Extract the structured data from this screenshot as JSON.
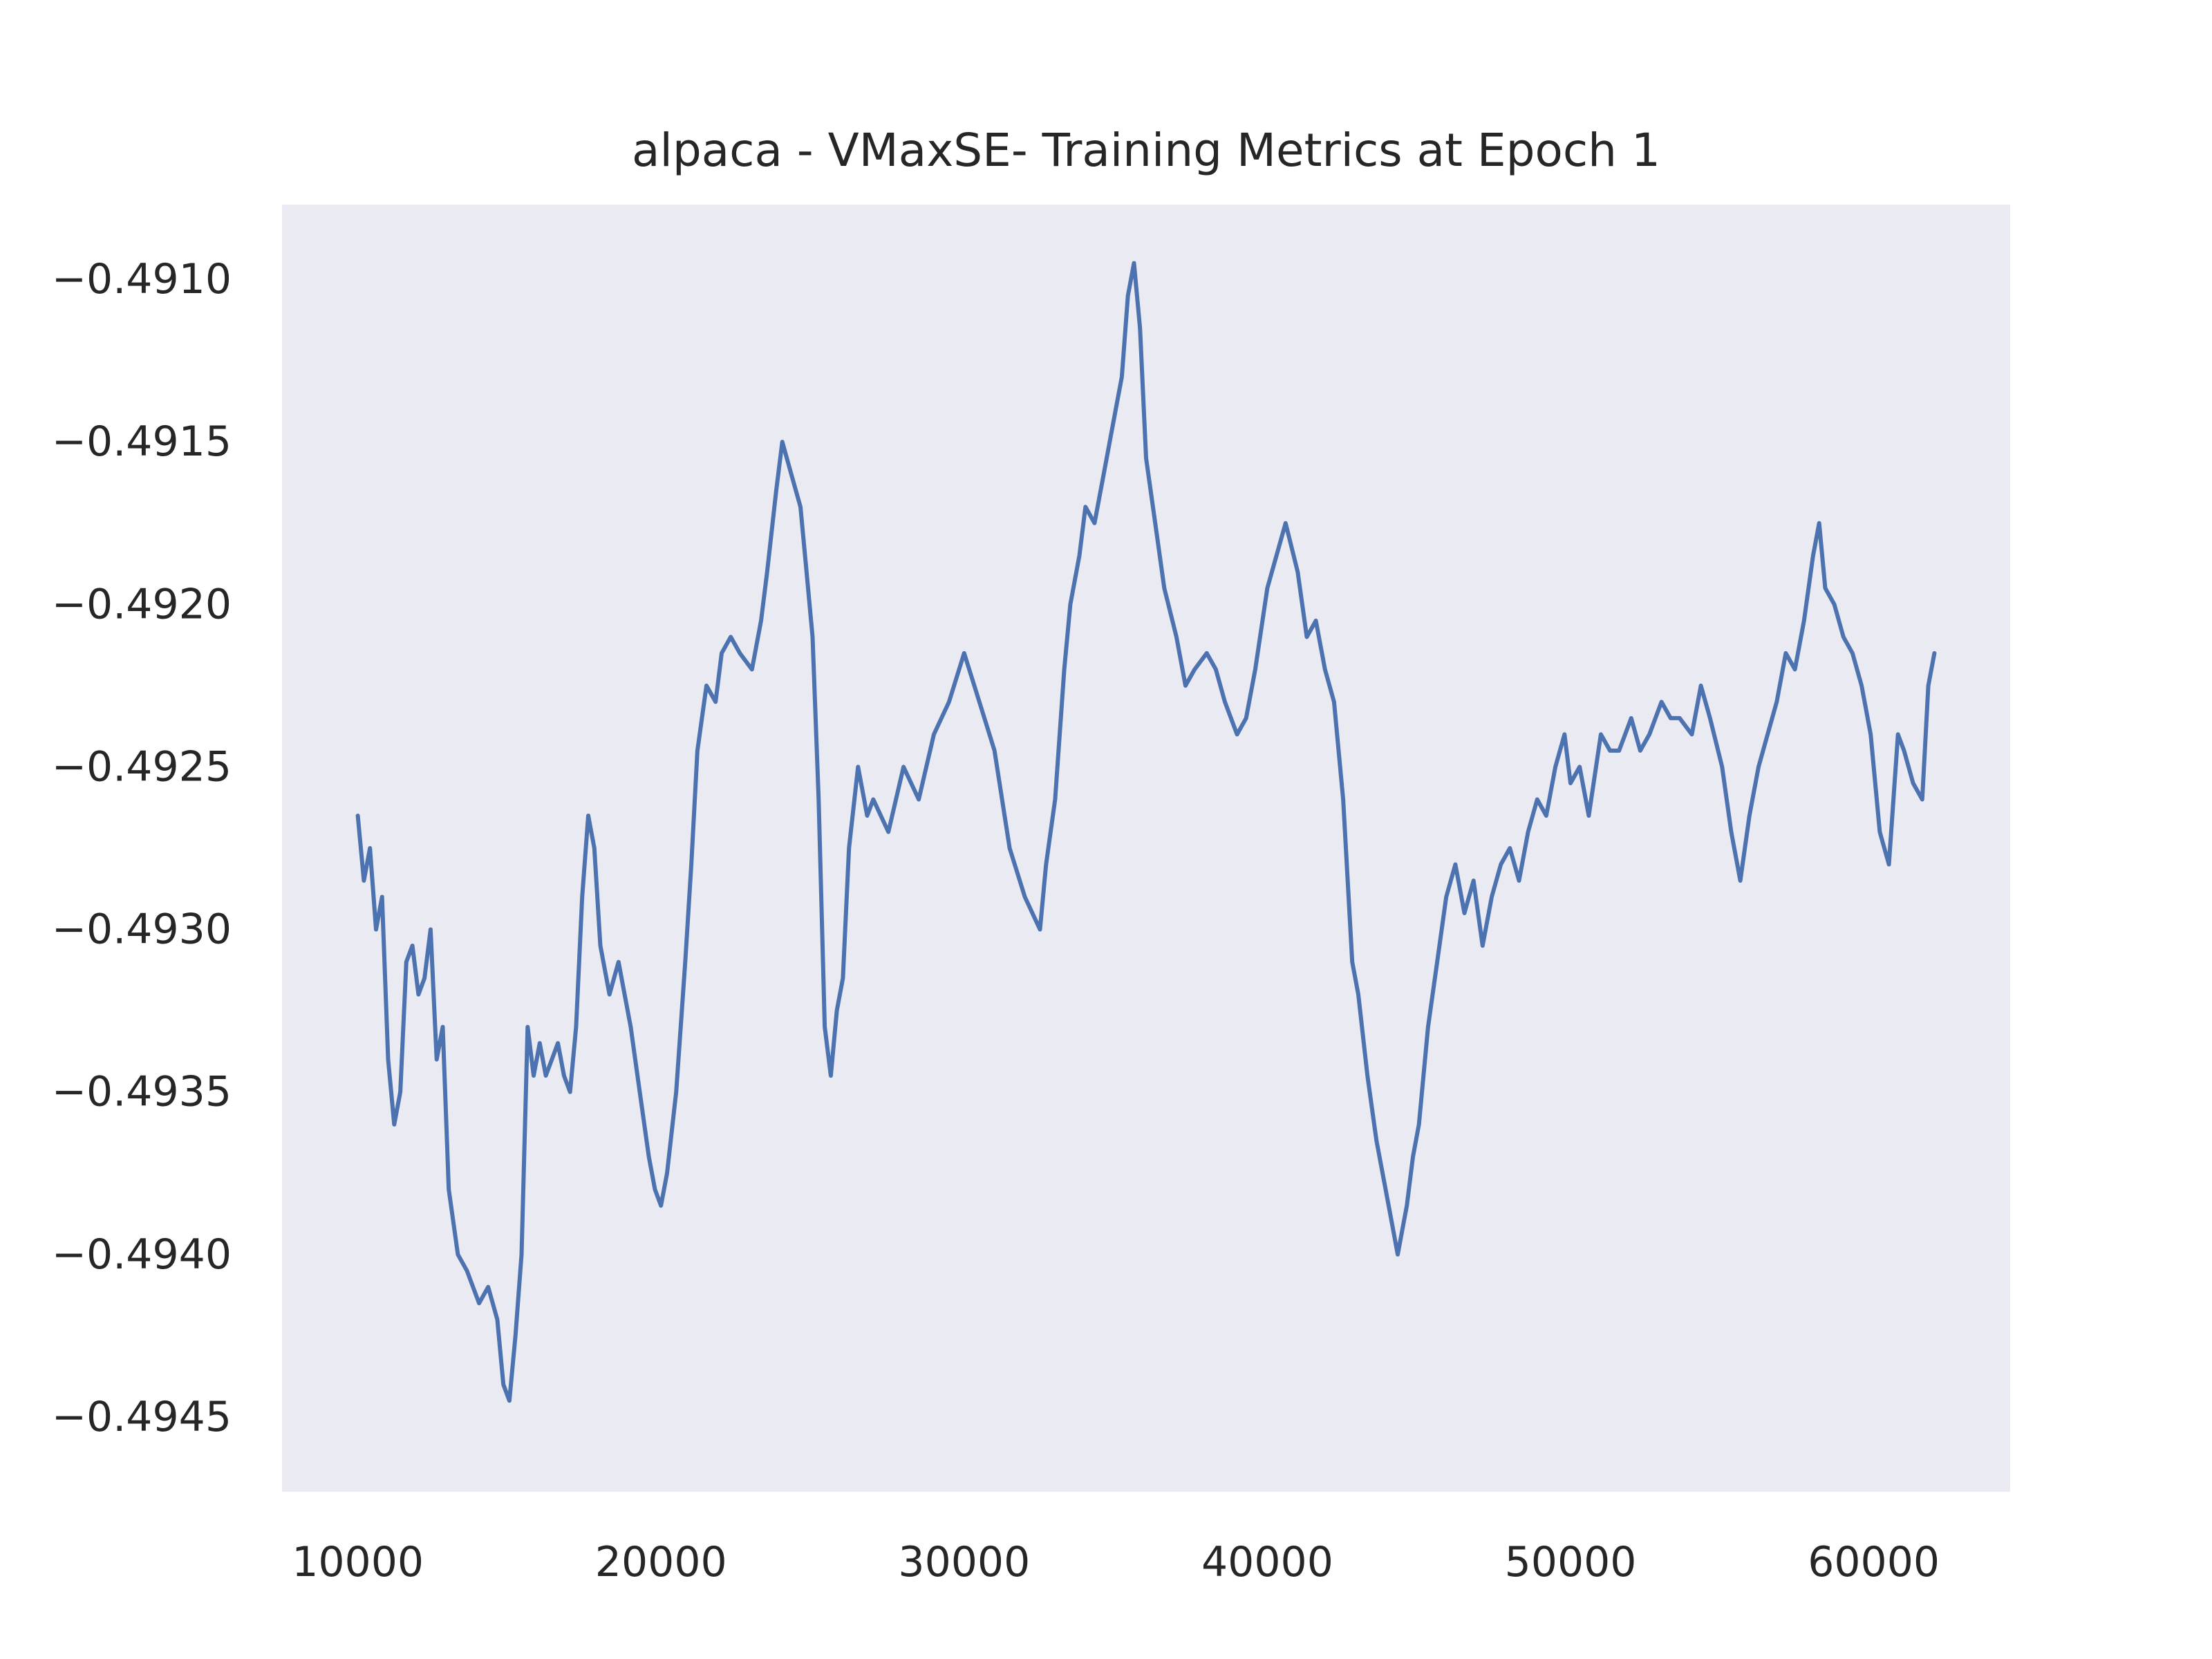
{
  "chart_data": {
    "type": "line",
    "title": "alpaca - VMaxSE- Training Metrics at Epoch 1",
    "xlabel": "",
    "ylabel": "",
    "xlim": [
      7500,
      64500
    ],
    "ylim": [
      -0.49473,
      -0.49077
    ],
    "x_ticks": [
      10000,
      20000,
      30000,
      40000,
      50000,
      60000
    ],
    "x_tick_labels": [
      "10000",
      "20000",
      "30000",
      "40000",
      "50000",
      "60000"
    ],
    "y_ticks": [
      -0.491,
      -0.4915,
      -0.492,
      -0.4925,
      -0.493,
      -0.4935,
      -0.494,
      -0.4945
    ],
    "y_tick_labels": [
      "−0.4910",
      "−0.4915",
      "−0.4920",
      "−0.4925",
      "−0.4930",
      "−0.4935",
      "−0.4940",
      "−0.4945"
    ],
    "grid": false,
    "background": "#eaeaf2",
    "series": [
      {
        "color": "#4c72b0",
        "x": [
          10000,
          10200,
          10400,
          10600,
          10800,
          11000,
          11200,
          11400,
          11600,
          11800,
          12000,
          12200,
          12400,
          12600,
          12800,
          13000,
          13300,
          13600,
          14000,
          14300,
          14600,
          14800,
          15000,
          15200,
          15400,
          15600,
          15800,
          16000,
          16200,
          16400,
          16600,
          16800,
          17000,
          17200,
          17400,
          17600,
          17800,
          18000,
          18300,
          18600,
          19000,
          19300,
          19600,
          19800,
          20000,
          20200,
          20500,
          20800,
          21000,
          21200,
          21500,
          21800,
          22000,
          22300,
          22600,
          23000,
          23300,
          23500,
          23800,
          24000,
          24300,
          24600,
          24800,
          25000,
          25200,
          25400,
          25600,
          25800,
          26000,
          26200,
          26500,
          26800,
          27000,
          27500,
          28000,
          28500,
          29000,
          29500,
          30000,
          30500,
          31000,
          31500,
          32000,
          32500,
          32700,
          33000,
          33300,
          33500,
          33800,
          34000,
          34300,
          34600,
          35000,
          35200,
          35400,
          35600,
          35800,
          36000,
          36300,
          36600,
          37000,
          37300,
          37600,
          38000,
          38300,
          38600,
          39000,
          39300,
          39600,
          40000,
          40300,
          40600,
          41000,
          41300,
          41600,
          41900,
          42200,
          42500,
          42800,
          43000,
          43300,
          43600,
          43900,
          44100,
          44300,
          44600,
          44800,
          45000,
          45300,
          45600,
          45900,
          46200,
          46500,
          46800,
          47100,
          47400,
          47700,
          48000,
          48300,
          48600,
          48900,
          49200,
          49500,
          49800,
          50000,
          50300,
          50600,
          51000,
          51300,
          51600,
          52000,
          52300,
          52600,
          53000,
          53300,
          53600,
          54000,
          54300,
          54600,
          55000,
          55300,
          55600,
          55900,
          56200,
          56500,
          56800,
          57100,
          57400,
          57700,
          58000,
          58200,
          58400,
          58700,
          59000,
          59300,
          59600,
          59900,
          60200,
          60500,
          60800,
          61000,
          61300,
          61600,
          61800,
          62000
        ],
        "y": [
          -0.49265,
          -0.49285,
          -0.49275,
          -0.493,
          -0.4929,
          -0.4934,
          -0.4936,
          -0.4935,
          -0.4931,
          -0.49305,
          -0.4932,
          -0.49315,
          -0.493,
          -0.4934,
          -0.4933,
          -0.4938,
          -0.494,
          -0.49405,
          -0.49415,
          -0.4941,
          -0.4942,
          -0.4944,
          -0.49445,
          -0.49425,
          -0.494,
          -0.4933,
          -0.49345,
          -0.49335,
          -0.49345,
          -0.4934,
          -0.49335,
          -0.49345,
          -0.4935,
          -0.4933,
          -0.4929,
          -0.49265,
          -0.49275,
          -0.49305,
          -0.4932,
          -0.4931,
          -0.4933,
          -0.4935,
          -0.4937,
          -0.4938,
          -0.49385,
          -0.49375,
          -0.4935,
          -0.4931,
          -0.4928,
          -0.49245,
          -0.49225,
          -0.4923,
          -0.49215,
          -0.4921,
          -0.49215,
          -0.4922,
          -0.49205,
          -0.4919,
          -0.49165,
          -0.4915,
          -0.4916,
          -0.4917,
          -0.4919,
          -0.4921,
          -0.4926,
          -0.4933,
          -0.49345,
          -0.49325,
          -0.49315,
          -0.49275,
          -0.4925,
          -0.49265,
          -0.4926,
          -0.4927,
          -0.4925,
          -0.4926,
          -0.4924,
          -0.4923,
          -0.49215,
          -0.4923,
          -0.49245,
          -0.49275,
          -0.4929,
          -0.493,
          -0.4928,
          -0.4926,
          -0.4922,
          -0.492,
          -0.49185,
          -0.4917,
          -0.49175,
          -0.4916,
          -0.4914,
          -0.4913,
          -0.49105,
          -0.49095,
          -0.49115,
          -0.49155,
          -0.49175,
          -0.49195,
          -0.4921,
          -0.49225,
          -0.4922,
          -0.49215,
          -0.4922,
          -0.4923,
          -0.4924,
          -0.49235,
          -0.4922,
          -0.49195,
          -0.49185,
          -0.49175,
          -0.4919,
          -0.4921,
          -0.49205,
          -0.4922,
          -0.4923,
          -0.4926,
          -0.4931,
          -0.4932,
          -0.49345,
          -0.49365,
          -0.4938,
          -0.4939,
          -0.494,
          -0.49385,
          -0.4937,
          -0.4936,
          -0.4933,
          -0.4931,
          -0.4929,
          -0.4928,
          -0.49295,
          -0.49285,
          -0.49305,
          -0.4929,
          -0.4928,
          -0.49275,
          -0.49285,
          -0.4927,
          -0.4926,
          -0.49265,
          -0.4925,
          -0.4924,
          -0.49255,
          -0.4925,
          -0.49265,
          -0.4924,
          -0.49245,
          -0.49245,
          -0.49235,
          -0.49245,
          -0.4924,
          -0.4923,
          -0.49235,
          -0.49235,
          -0.4924,
          -0.49225,
          -0.49235,
          -0.4925,
          -0.4927,
          -0.49285,
          -0.49265,
          -0.4925,
          -0.4924,
          -0.4923,
          -0.49215,
          -0.4922,
          -0.49205,
          -0.49185,
          -0.49175,
          -0.49195,
          -0.492,
          -0.4921,
          -0.49215,
          -0.49225,
          -0.4924,
          -0.4927,
          -0.4928,
          -0.4924,
          -0.49245,
          -0.49255,
          -0.4926,
          -0.49225,
          -0.49215
        ]
      }
    ]
  }
}
